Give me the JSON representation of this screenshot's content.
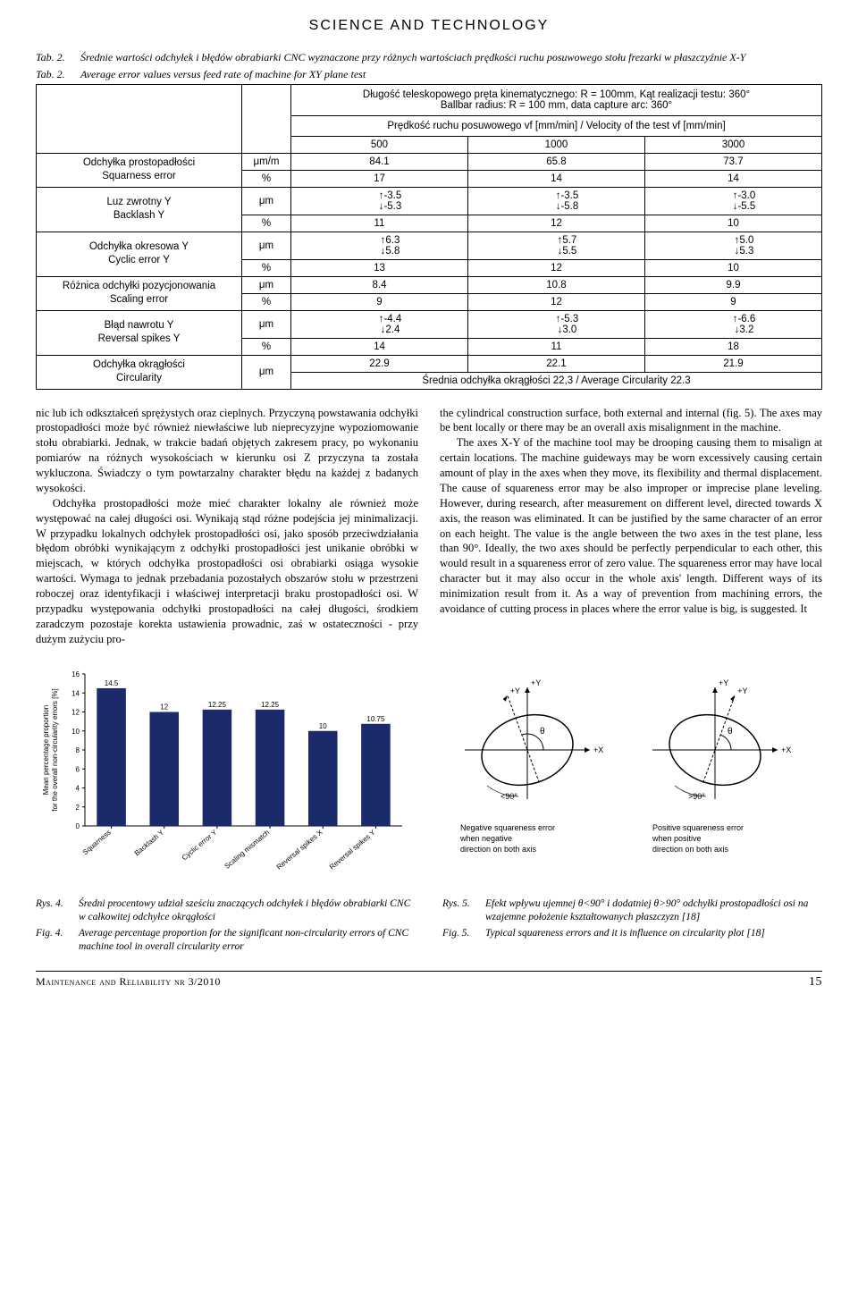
{
  "page_header": "SCIENCE AND TECHNOLOGY",
  "table": {
    "captions": [
      {
        "label": "Tab. 2.",
        "text": "Średnie wartości odchyłek i błędów obrabiarki CNC wyznaczone przy różnych wartościach prędkości ruchu posuwowego stołu frezarki w płaszczyźnie X-Y"
      },
      {
        "label": "Tab. 2.",
        "text": "Average error values versus feed rate of machine for XY plane test"
      }
    ],
    "header1": "Długość teleskopowego pręta kinematycznego: R = 100mm, Kąt realizacji testu: 360°\nBallbar radius: R = 100 mm, data capture arc: 360°",
    "header2": "Prędkość ruchu posuwowego vf [mm/min] / Velocity of the test vf [mm/min]",
    "speeds": [
      "500",
      "1000",
      "3000"
    ],
    "rows": [
      {
        "label_pl": "Odchyłka prostopadłości",
        "label_en": "Squarness error",
        "lines": [
          {
            "unit": "μm/m",
            "vals": [
              "84.1",
              "65.8",
              "73.7"
            ]
          },
          {
            "unit": "%",
            "vals": [
              "17",
              "14",
              "14"
            ]
          }
        ]
      },
      {
        "label_pl": "Luz zwrotny Y",
        "label_en": "Backlash Y",
        "lines": [
          {
            "unit": "μm",
            "arrows": true,
            "vals": [
              [
                "↑-3.5",
                "↓-5.3"
              ],
              [
                "↑-3.5",
                "↓-5.8"
              ],
              [
                "↑-3.0",
                "↓-5.5"
              ]
            ]
          },
          {
            "unit": "%",
            "vals": [
              "11",
              "12",
              "10"
            ]
          }
        ]
      },
      {
        "label_pl": "Odchyłka okresowa Y",
        "label_en": "Cyclic error Y",
        "lines": [
          {
            "unit": "μm",
            "arrows": true,
            "vals": [
              [
                "↑6.3",
                "↓5.8"
              ],
              [
                "↑5.7",
                "↓5.5"
              ],
              [
                "↑5.0",
                "↓5.3"
              ]
            ]
          },
          {
            "unit": "%",
            "vals": [
              "13",
              "12",
              "10"
            ]
          }
        ]
      },
      {
        "label_pl": "Różnica odchyłki pozycjonowania",
        "label_en": "Scaling error",
        "lines": [
          {
            "unit": "μm",
            "vals": [
              "8.4",
              "10.8",
              "9.9"
            ]
          },
          {
            "unit": "%",
            "vals": [
              "9",
              "12",
              "9"
            ]
          }
        ]
      },
      {
        "label_pl": "Błąd nawrotu Y",
        "label_en": "Reversal spikes Y",
        "lines": [
          {
            "unit": "μm",
            "arrows": true,
            "vals": [
              [
                "↑-4.4",
                "↓2.4"
              ],
              [
                "↑-5.3",
                "↓3.0"
              ],
              [
                "↑-6.6",
                "↓3.2"
              ]
            ]
          },
          {
            "unit": "%",
            "vals": [
              "14",
              "11",
              "18"
            ]
          }
        ]
      },
      {
        "label_pl": "Odchyłka okrągłości",
        "label_en": "Circularity",
        "circularity": true,
        "unit": "μm",
        "vals": [
          "22.9",
          "22.1",
          "21.9"
        ],
        "avg_line": "Średnia odchyłka okrągłości 22,3 / Average Circularity 22.3"
      }
    ]
  },
  "body_text": {
    "left": [
      "nic lub ich odkształceń sprężystych oraz cieplnych. Przyczyną powstawania odchyłki prostopadłości może być również niewłaściwe lub nieprecyzyjne wypoziomowanie stołu obrabiarki. Jednak, w trakcie badań objętych zakresem pracy, po wykonaniu pomiarów na różnych wysokościach w kierunku osi Z przyczyna ta została wykluczona. Świadczy o tym powtarzalny charakter błędu na każdej z badanych wysokości.",
      "Odchyłka prostopadłości może mieć charakter lokalny ale również może występować na całej długości osi. Wynikają stąd różne podejścia jej minimalizacji. W przypadku lokalnych odchyłek prostopadłości osi, jako sposób przeciwdziałania błędom obróbki wynikającym z odchyłki prostopadłości jest unikanie obróbki w miejscach, w których odchyłka prostopadłości osi obrabiarki osiąga wysokie wartości. Wymaga to jednak przebadania pozostałych obszarów stołu w przestrzeni roboczej oraz identyfikacji i właściwej interpretacji braku prostopadłości osi. W przypadku występowania odchyłki prostopadłości na całej długości, środkiem zaradczym pozostaje korekta ustawienia prowadnic, zaś w ostateczności - przy dużym zużyciu pro-"
    ],
    "right": [
      "the cylindrical construction surface, both external and internal (fig. 5). The axes may be bent locally or there may be an overall axis misalignment in the machine.",
      "The axes X-Y of the machine tool may be drooping causing them to misalign at certain locations. The machine guideways may be worn excessively causing certain amount of play in the axes when they move, its flexibility and thermal displacement. The cause of squareness error may be also improper or imprecise plane leveling. However, during research, after measurement on different level, directed towards X axis, the reason was eliminated. It can be justified by the same character of an error on each height. The value is the angle between the two axes in the test plane, less than 90°. Ideally, the two axes should be perfectly perpendicular to each other, this would result in a squareness error of zero value. The squareness error may have local character but it may also occur in the whole axis' length. Different ways of its minimization result from it. As a way of prevention from machining errors, the avoidance of cutting process in places where the error value is big, is suggested. It"
    ]
  },
  "fig4": {
    "type": "bar",
    "categories": [
      "Squarness",
      "Backlash Y",
      "Cyclic error Y",
      "Scaling mismatch",
      "Reversal spikes X",
      "Reversal spikes Y"
    ],
    "values": [
      14.5,
      12,
      12.25,
      12.25,
      10,
      10.75
    ],
    "bar_color": "#1b2a6b",
    "ylim": [
      0,
      16
    ],
    "ytick_step": 2,
    "ylabel": "Mean percentage proportion\nfor the overall non-circularity errors [%]",
    "label_fontsize": 8,
    "background_color": "#ffffff",
    "captions": [
      {
        "label": "Rys. 4.",
        "text": "Średni procentowy udział sześciu znaczących odchyłek i błędów obrabiarki CNC w całkowitej odchyłce okrągłości"
      },
      {
        "label": "Fig. 4.",
        "text": "Average percentage proportion for the significant non-circularity errors of CNC machine tool in overall circularity error"
      }
    ]
  },
  "fig5": {
    "type": "diagram",
    "left_label": "Negative squareness error\nwhen negative\ndirection on both axis",
    "left_angle": "<90°",
    "right_label": "Positive squareness error\nwhen positive\ndirection on both axis",
    "right_angle": ">90°",
    "axis_labels": {
      "x": "+X",
      "y": "+Y"
    },
    "theta": "θ",
    "ellipse_color": "#000000",
    "axis_color": "#000000",
    "captions": [
      {
        "label": "Rys. 5.",
        "text": "Efekt wpływu ujemnej θ<90° i dodatniej θ>90° odchyłki prostopadłości osi na wzajemne położenie kształtowanych płaszczyzn [18]"
      },
      {
        "label": "Fig. 5.",
        "text": "Typical squareness errors and it is influence on circularity plot [18]"
      }
    ]
  },
  "footer": {
    "journal": "Maintenance and Reliability nr 3/2010",
    "page": "15"
  }
}
